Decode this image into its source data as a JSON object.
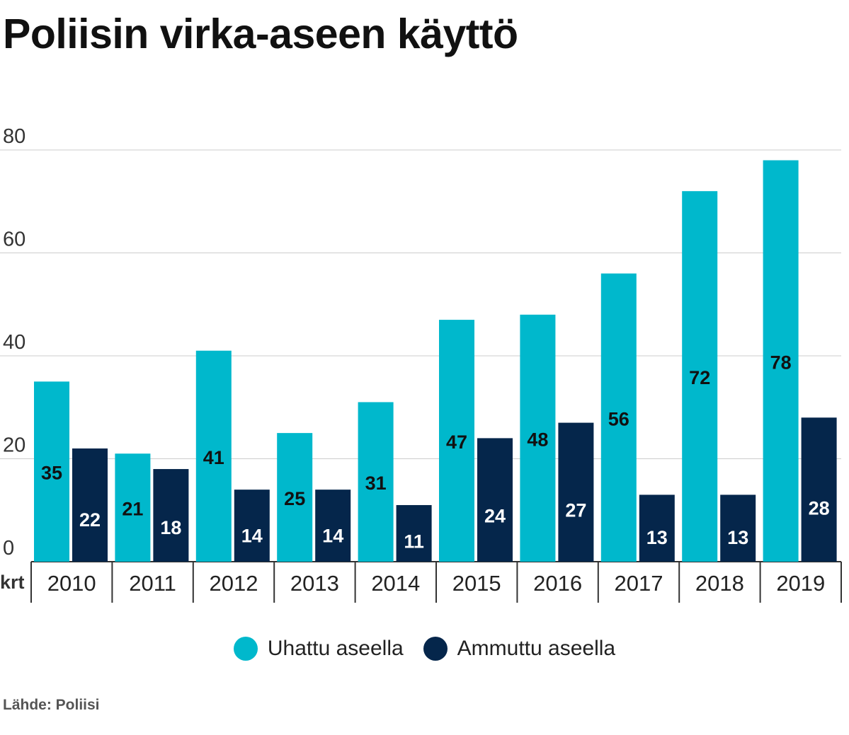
{
  "chart_data": {
    "type": "bar",
    "title": "Poliisin virka-aseen käyttö",
    "xlabel": "",
    "ylabel": "",
    "unit": "krt",
    "categories": [
      "2010",
      "2011",
      "2012",
      "2013",
      "2014",
      "2015",
      "2016",
      "2017",
      "2018",
      "2019"
    ],
    "series": [
      {
        "name": "Uhattu aseella",
        "color": "#00b8cc",
        "values": [
          35,
          21,
          41,
          25,
          31,
          47,
          48,
          56,
          72,
          78
        ]
      },
      {
        "name": "Ammuttu aseella",
        "color": "#05264b",
        "values": [
          22,
          18,
          14,
          14,
          11,
          24,
          27,
          13,
          13,
          28
        ]
      }
    ],
    "ylim": [
      0,
      80
    ],
    "yticks": [
      "0",
      "20",
      "40",
      "60",
      "80"
    ],
    "grid": true,
    "legend_position": "bottom-center",
    "source": "Lähde: Poliisi"
  }
}
